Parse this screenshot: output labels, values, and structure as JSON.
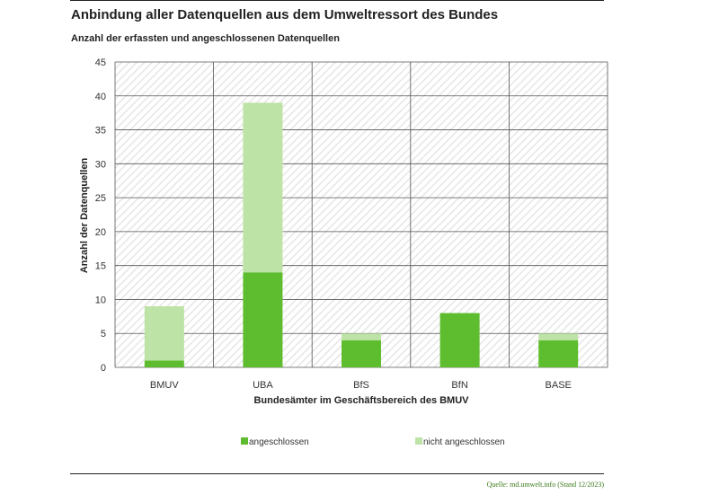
{
  "header": {
    "title": "Anbindung aller Datenquellen aus dem Umweltressort des Bundes",
    "subtitle": "Anzahl der erfassten und angeschlossenen Datenquellen"
  },
  "footer": {
    "source": "Quelle: md.umwelt.info (Stand 12/2023)"
  },
  "colors": {
    "connected": "#5ebd2e",
    "not_connected": "#bde3a6",
    "grid": "#555555",
    "hatch": "#e8e8e8"
  },
  "chart_data": {
    "type": "bar",
    "stacked": true,
    "categories": [
      "BMUV",
      "UBA",
      "BfS",
      "BfN",
      "BASE"
    ],
    "series": [
      {
        "name": "angeschlossen",
        "values": [
          1,
          14,
          4,
          8,
          4
        ],
        "color": "#5ebd2e"
      },
      {
        "name": "nicht angeschlossen",
        "values": [
          8,
          25,
          1,
          0,
          1
        ],
        "color": "#bde3a6"
      }
    ],
    "xlabel": "Bundesämter im Geschäftsbereich des BMUV",
    "ylabel": "Anzahl der Datenquellen",
    "ylim": [
      0,
      45
    ],
    "yticks": [
      0,
      5,
      10,
      15,
      20,
      25,
      30,
      35,
      40,
      45
    ],
    "grid": true,
    "legend": "bottom"
  }
}
